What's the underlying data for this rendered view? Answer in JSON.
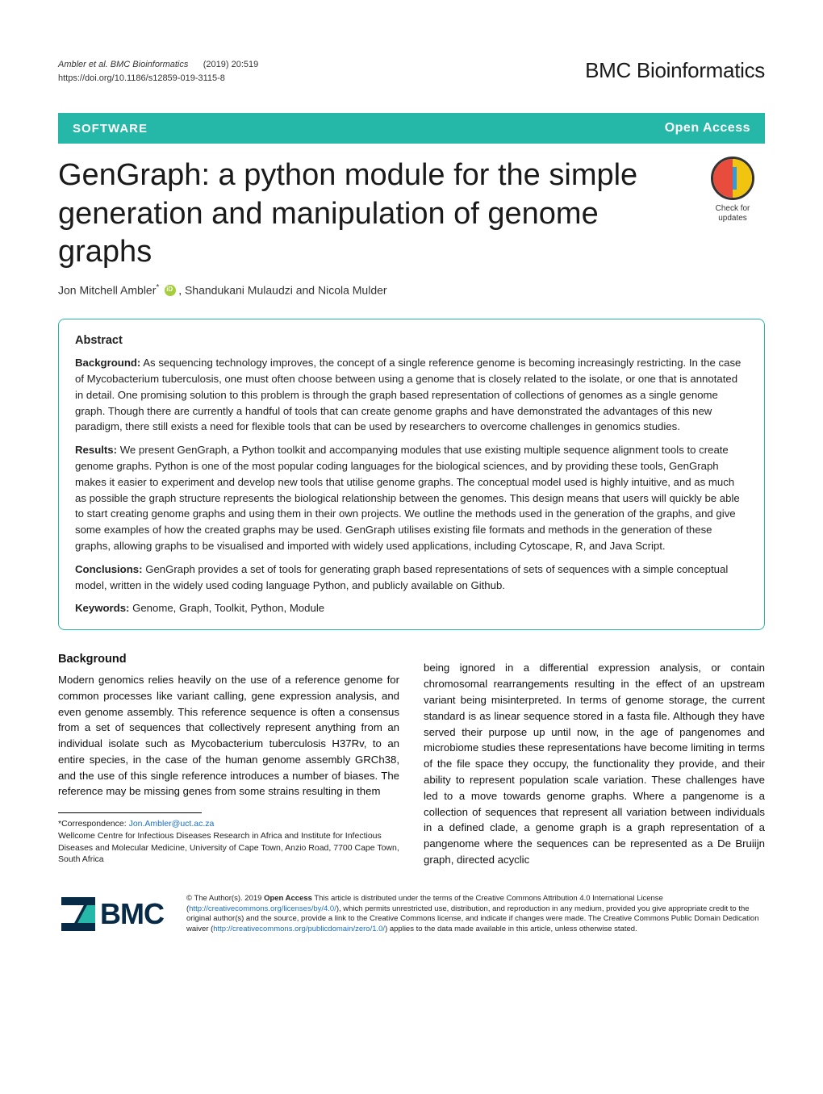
{
  "running_head": {
    "cite": "Ambler et al. BMC Bioinformatics",
    "year_vol": "(2019) 20:519",
    "doi": "https://doi.org/10.1186/s12859-019-3115-8",
    "journal_brand": "BMC Bioinformatics"
  },
  "banner": {
    "article_type": "SOFTWARE",
    "open_access": "Open Access"
  },
  "title": "GenGraph: a python module for the simple generation and manipulation of genome graphs",
  "authors": {
    "a1_name": "Jon Mitchell Ambler",
    "a1_sup": "*",
    "rest": ", Shandukani Mulaudzi and Nicola Mulder"
  },
  "crossmark": {
    "label1": "Check for",
    "label2": "updates"
  },
  "abstract": {
    "heading": "Abstract",
    "bg_label": "Background:",
    "bg_text": "  As sequencing  technology  improves, the concept of a single reference genome is becoming increasingly restricting. In the case of Mycobacterium tuberculosis, one must often choose between using a genome that is closely related to the isolate, or one that is annotated in detail. One promising solution to this problem is through the graph based representation of collections of genomes as a single genome graph. Though there are currently a handful of tools that can create genome graphs and have demonstrated the advantages of this new paradigm, there still exists a need for flexible tools that can be used by researchers to overcome challenges in genomics studies.",
    "res_label": "Results:",
    "res_text": "  We present GenGraph, a Python toolkit and accompanying modules that use existing multiple sequence alignment tools to create genome graphs. Python is one of the most popular coding languages for the biological sciences, and by providing these tools, GenGraph makes it easier to experiment and develop new tools that utilise genome graphs. The conceptual model used is highly intuitive, and as much as possible the graph structure represents the biological relationship between the genomes. This design means that users will quickly be able to start creating genome graphs and using them in their own projects. We outline the methods used in the generation of the graphs, and give some examples of how the created graphs may be used. GenGraph utilises existing file formats and methods in the generation of these graphs, allowing graphs to be visualised and imported with widely used applications, including Cytoscape, R, and Java Script.",
    "con_label": "Conclusions:",
    "con_text": "  GenGraph provides a set of tools for generating graph based representations of sets of sequences with a simple conceptual model, written in the widely used coding language Python, and publicly available on Github.",
    "kw_label": "Keywords:",
    "kw_text": "  Genome, Graph, Toolkit, Python, Module"
  },
  "body": {
    "heading": "Background",
    "back_p1": "Modern genomics relies heavily on the use of a reference genome for common processes like variant calling, gene expression analysis, and even genome assembly. This reference sequence is often a consensus from a set of sequences that collectively represent anything from an individual isolate such as Mycobacterium tuberculosis H37Rv, to an entire species, in the case of the human genome assembly GRCh38, and the use of this single reference introduces a number of biases. The reference may be missing genes from some strains resulting in them",
    "back_p2": "being ignored in a differential expression analysis, or contain chromosomal rearrangements resulting in the effect of an upstream variant being misinterpreted. In terms of genome storage, the current standard is as linear sequence stored in a fasta file. Although they have served their purpose up until now, in the age of pangenomes and microbiome studies these representations have become limiting in terms of the file space they occupy, the functionality they provide, and their ability to represent population scale variation. These challenges have led to a move towards genome graphs. Where a pangenome is a collection of sequences that represent all variation between individuals in a defined clade, a genome graph is a graph representation of a pangenome where the sequences can be represented as a De Bruiijn graph, directed acyclic"
  },
  "footnote": {
    "corr_label": "*Correspondence: ",
    "corr_email": "Jon.Ambler@uct.ac.za",
    "affil": "Wellcome Centre for Infectious Diseases Research in Africa and Institute for Infectious Diseases and Molecular Medicine, University of Cape Town, Anzio Road, 7700 Cape Town, South Africa"
  },
  "license": {
    "bmc": "BMC",
    "pre": "© The Author(s). 2019 ",
    "oa_bold": "Open Access",
    "mid1": " This article is distributed under the terms of the Creative Commons Attribution 4.0 International License (",
    "url1": "http://creativecommons.org/licenses/by/4.0/",
    "mid2": "), which permits unrestricted use, distribution, and reproduction in any medium, provided you give appropriate credit to the original author(s) and the source, provide a link to the Creative Commons license, and indicate if changes were made. The Creative Commons Public Domain Dedication waiver (",
    "url2": "http://creativecommons.org/publicdomain/zero/1.0/",
    "post": ") applies to the data made available in this article, unless otherwise stated."
  },
  "style": {
    "brand_color": "#25b8a8",
    "link_color": "#1a6fc4",
    "title_fontsize": 38,
    "body_fontsize": 13.2,
    "abstract_border_radius": 8
  }
}
